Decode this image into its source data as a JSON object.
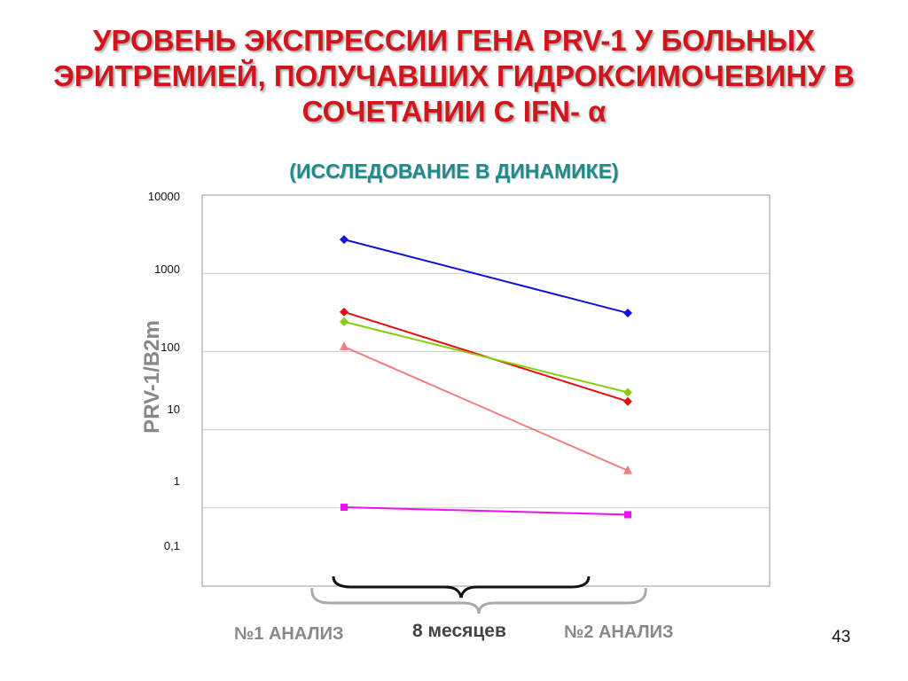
{
  "slide": {
    "title_lines": [
      "УРОВЕНЬ ЭКСПРЕССИИ ГЕНА PRV-1 У БОЛЬНЫХ",
      "ЭРИТРЕМИЕЙ, ПОЛУЧАВШИХ ГИДРОКСИМОЧЕВИНУ В",
      "СОЧЕТАНИИ С IFN- α"
    ],
    "subtitle": "(ИССЛЕДОВАНИЕ В ДИНАМИКЕ)",
    "period_label": "8 месяцев",
    "page_number": "43"
  },
  "chart_data": {
    "type": "line",
    "scale": "log",
    "ylabel": "PRV-1/B2m",
    "y_tick_labels": [
      "10000",
      "1000",
      "100",
      "10",
      "1",
      "0,1"
    ],
    "y_tick_values": [
      10000,
      1000,
      100,
      10,
      1,
      0.1
    ],
    "ylim": [
      0.1,
      10000
    ],
    "categories": [
      "№1 АНАЛИЗ",
      "№2 АНАЛИЗ"
    ],
    "grid": true,
    "legend": "none",
    "series": [
      {
        "color": "#1010dd",
        "marker": "diamond",
        "values": [
          2700,
          310
        ]
      },
      {
        "color": "#e01010",
        "marker": "diamond",
        "values": [
          320,
          23
        ]
      },
      {
        "color": "#88cc11",
        "marker": "diamond",
        "values": [
          240,
          30
        ]
      },
      {
        "color": "#f08080",
        "marker": "triangle",
        "values": [
          115,
          3
        ]
      },
      {
        "color": "#ee11ee",
        "marker": "square",
        "values": [
          1.02,
          0.82
        ]
      }
    ]
  }
}
